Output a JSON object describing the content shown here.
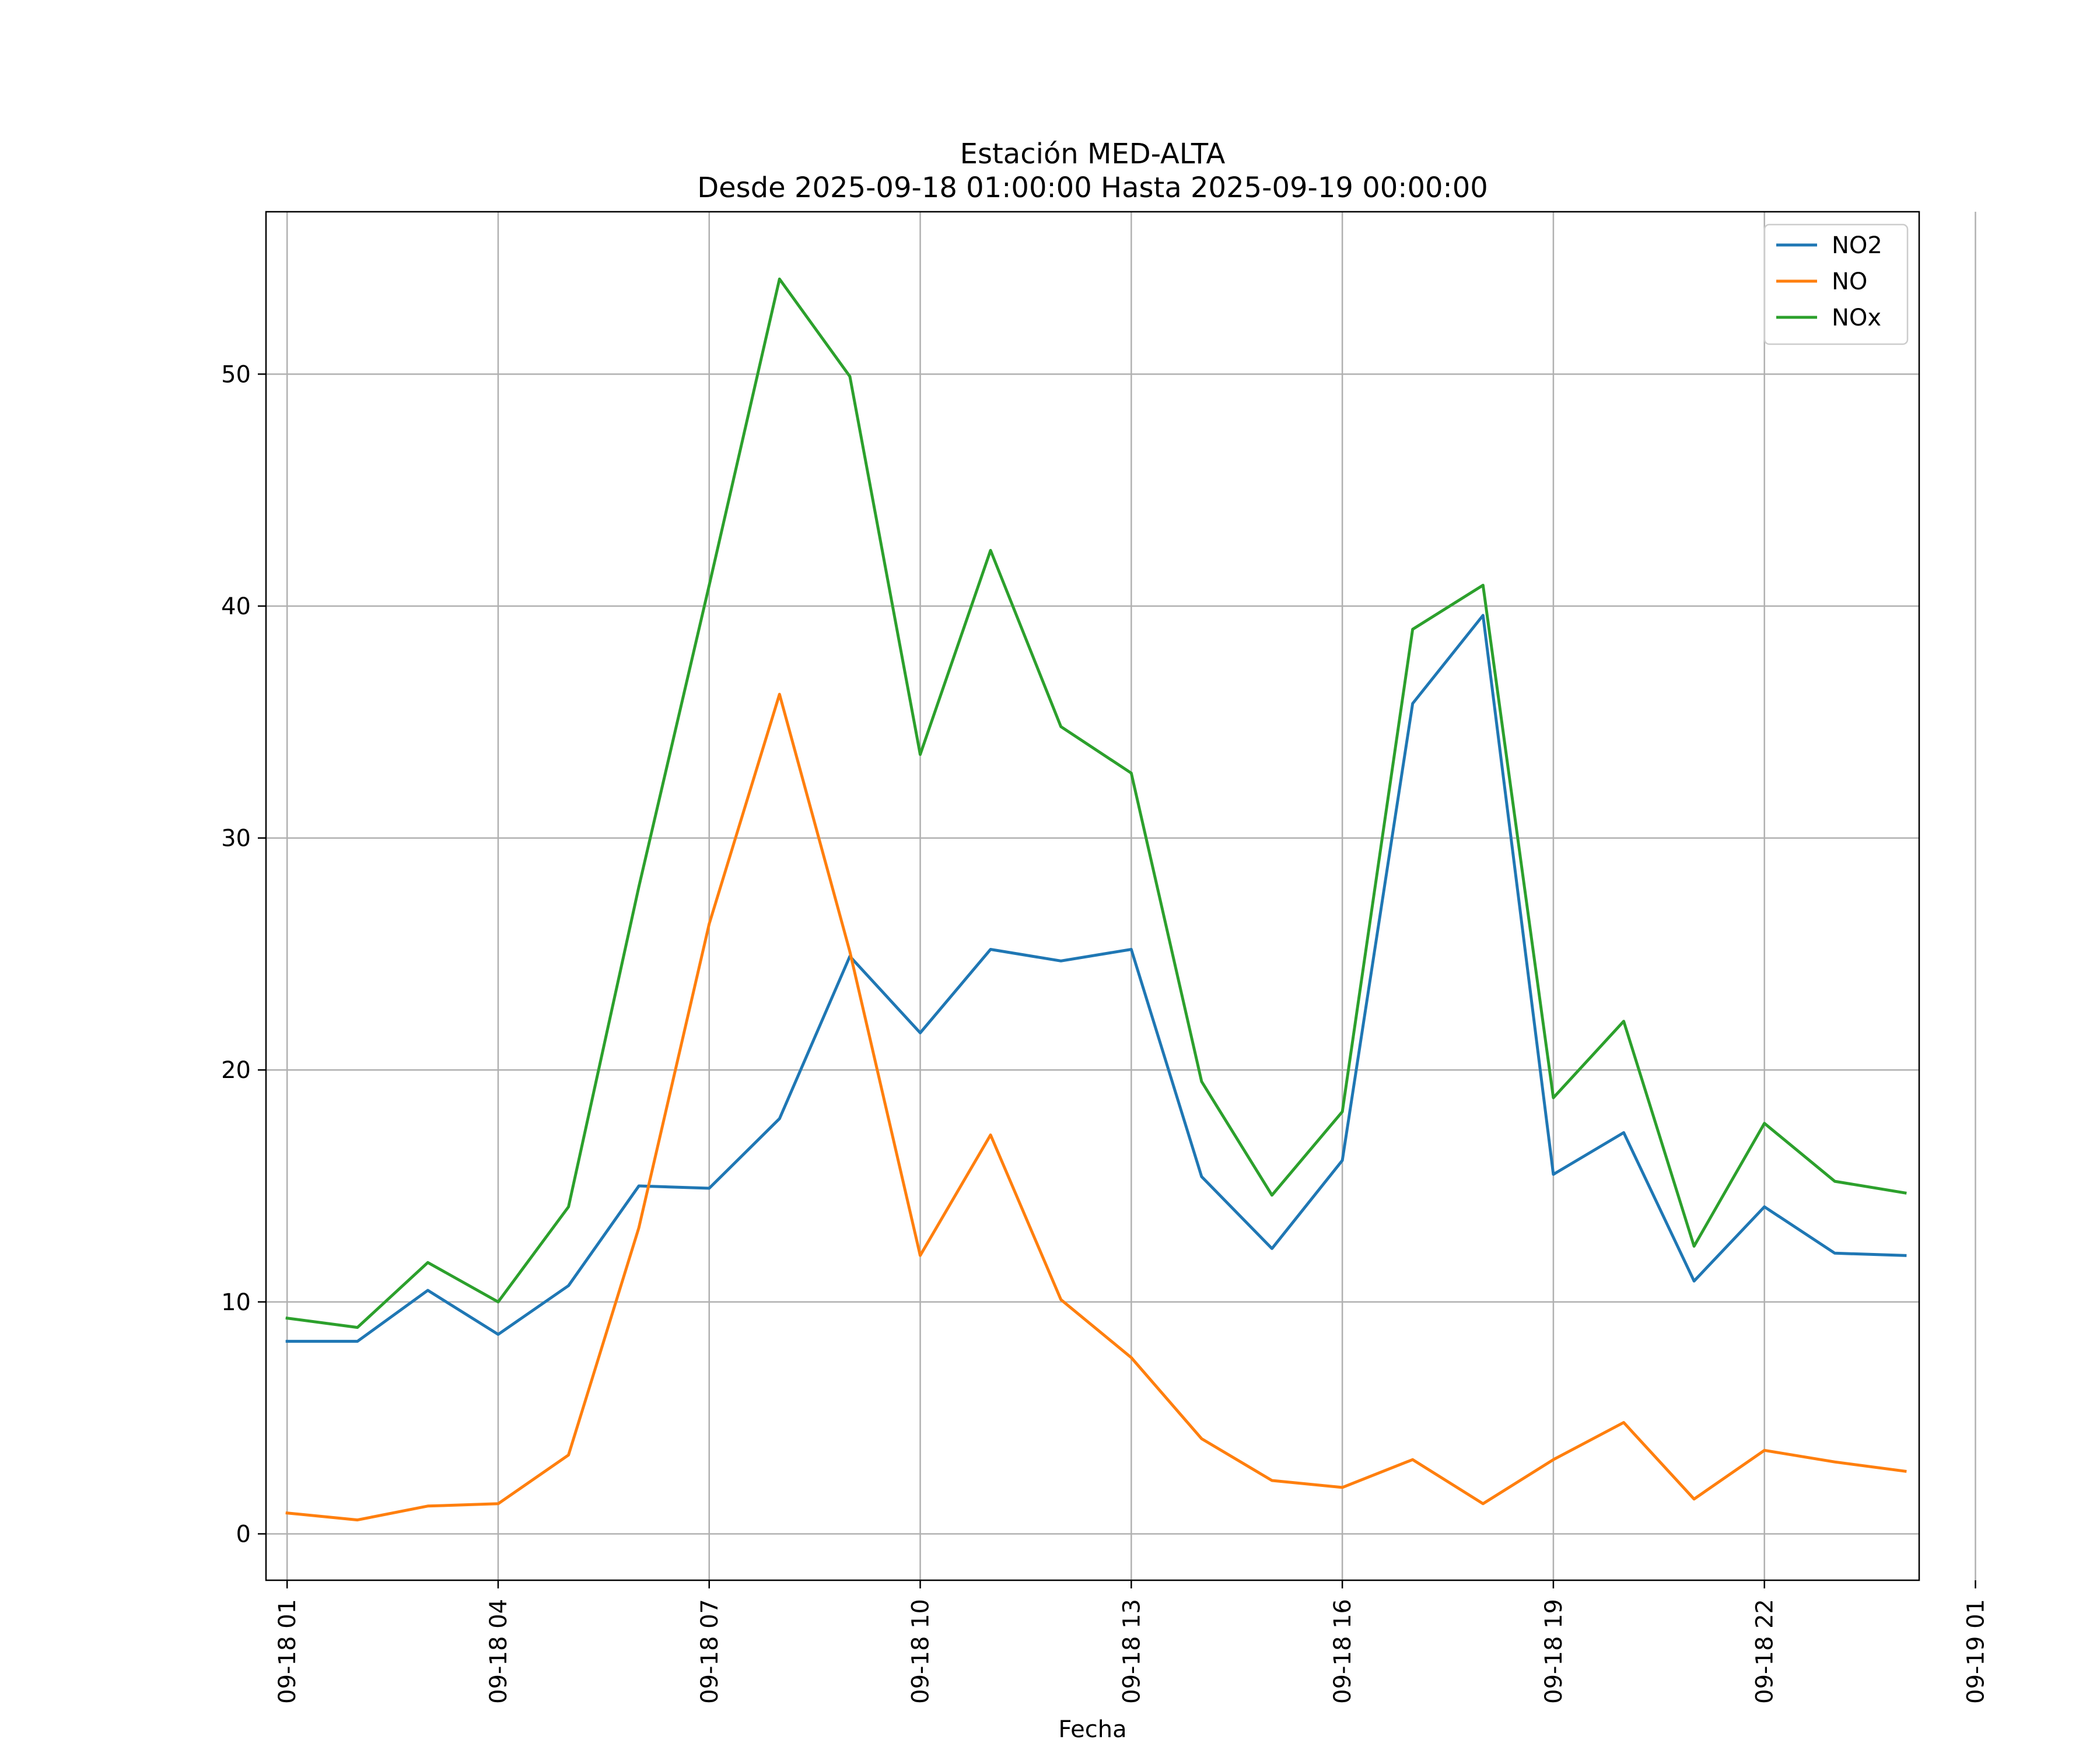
{
  "chart_data": {
    "type": "line",
    "title": "Estación MED-ALTA",
    "subtitle": "Desde 2025-09-18 01:00:00 Hasta 2025-09-19 00:00:00",
    "xlabel": "Fecha",
    "ylabel": "",
    "xlim": [
      0.7,
      24.2
    ],
    "ylim": [
      -2,
      57
    ],
    "grid": true,
    "legend_position": "top-right",
    "x_ticks": [
      {
        "value": 1,
        "label": "09-18 01"
      },
      {
        "value": 4,
        "label": "09-18 04"
      },
      {
        "value": 7,
        "label": "09-18 07"
      },
      {
        "value": 10,
        "label": "09-18 10"
      },
      {
        "value": 13,
        "label": "09-18 13"
      },
      {
        "value": 16,
        "label": "09-18 16"
      },
      {
        "value": 19,
        "label": "09-18 19"
      },
      {
        "value": 22,
        "label": "09-18 22"
      },
      {
        "value": 25,
        "label": "09-19 01"
      }
    ],
    "y_ticks": [
      {
        "value": 0,
        "label": "0"
      },
      {
        "value": 10,
        "label": "10"
      },
      {
        "value": 20,
        "label": "20"
      },
      {
        "value": 30,
        "label": "30"
      },
      {
        "value": 40,
        "label": "40"
      },
      {
        "value": 50,
        "label": "50"
      }
    ],
    "x": [
      1,
      2,
      3,
      4,
      5,
      6,
      7,
      8,
      9,
      10,
      11,
      12,
      13,
      14,
      15,
      16,
      17,
      18,
      19,
      20,
      21,
      22,
      23,
      24
    ],
    "series": [
      {
        "name": "NO2",
        "color": "#1f77b4",
        "values": [
          8.3,
          8.3,
          10.5,
          8.6,
          10.7,
          15.0,
          14.9,
          17.9,
          24.9,
          21.6,
          25.2,
          24.7,
          25.2,
          15.4,
          12.3,
          16.1,
          35.8,
          39.6,
          15.5,
          17.3,
          10.9,
          14.1,
          12.1,
          12.0
        ]
      },
      {
        "name": "NO",
        "color": "#ff7f0e",
        "values": [
          0.9,
          0.6,
          1.2,
          1.3,
          3.4,
          13.2,
          26.3,
          36.2,
          25.1,
          12.0,
          17.2,
          10.1,
          7.6,
          4.1,
          2.3,
          2.0,
          3.2,
          1.3,
          3.2,
          4.8,
          1.5,
          3.6,
          3.1,
          2.7
        ]
      },
      {
        "name": "NOx",
        "color": "#2ca02c",
        "values": [
          9.3,
          8.9,
          11.7,
          10.0,
          14.1,
          27.9,
          40.9,
          54.1,
          49.9,
          33.6,
          42.4,
          34.8,
          32.8,
          19.5,
          14.6,
          18.2,
          39.0,
          40.9,
          18.8,
          22.1,
          12.4,
          17.7,
          15.2,
          14.7
        ]
      }
    ]
  }
}
